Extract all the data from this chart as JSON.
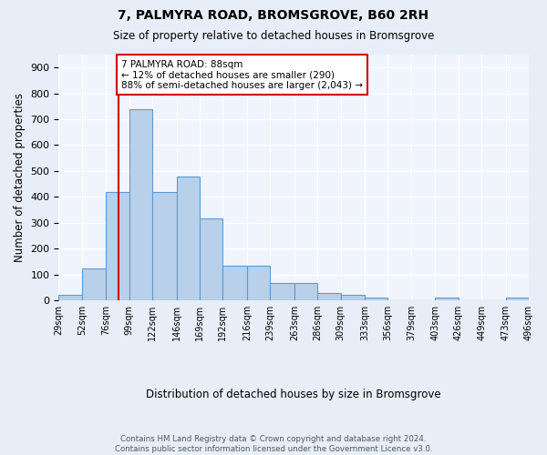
{
  "title": "7, PALMYRA ROAD, BROMSGROVE, B60 2RH",
  "subtitle": "Size of property relative to detached houses in Bromsgrove",
  "xlabel": "Distribution of detached houses by size in Bromsgrove",
  "ylabel": "Number of detached properties",
  "bar_edges": [
    29,
    52,
    76,
    99,
    122,
    146,
    169,
    192,
    216,
    239,
    263,
    286,
    309,
    333,
    356,
    379,
    403,
    426,
    449,
    473,
    496
  ],
  "bar_heights": [
    20,
    123,
    418,
    740,
    418,
    479,
    315,
    135,
    135,
    68,
    68,
    27,
    22,
    10,
    0,
    0,
    10,
    0,
    0,
    10
  ],
  "bar_color": "#b8d0ea",
  "bar_edgecolor": "#5b9bd5",
  "property_line_x": 88,
  "property_line_color": "#cc0000",
  "annotation_text": "7 PALMYRA ROAD: 88sqm\n← 12% of detached houses are smaller (290)\n88% of semi-detached houses are larger (2,043) →",
  "annotation_box_facecolor": "#ffffff",
  "annotation_box_edgecolor": "#cc0000",
  "ylim": [
    0,
    950
  ],
  "yticks": [
    0,
    100,
    200,
    300,
    400,
    500,
    600,
    700,
    800,
    900
  ],
  "footer_text": "Contains HM Land Registry data © Crown copyright and database right 2024.\nContains public sector information licensed under the Government Licence v3.0.",
  "bg_color": "#e8eef8",
  "plot_bg_color": "#f0f4fc"
}
